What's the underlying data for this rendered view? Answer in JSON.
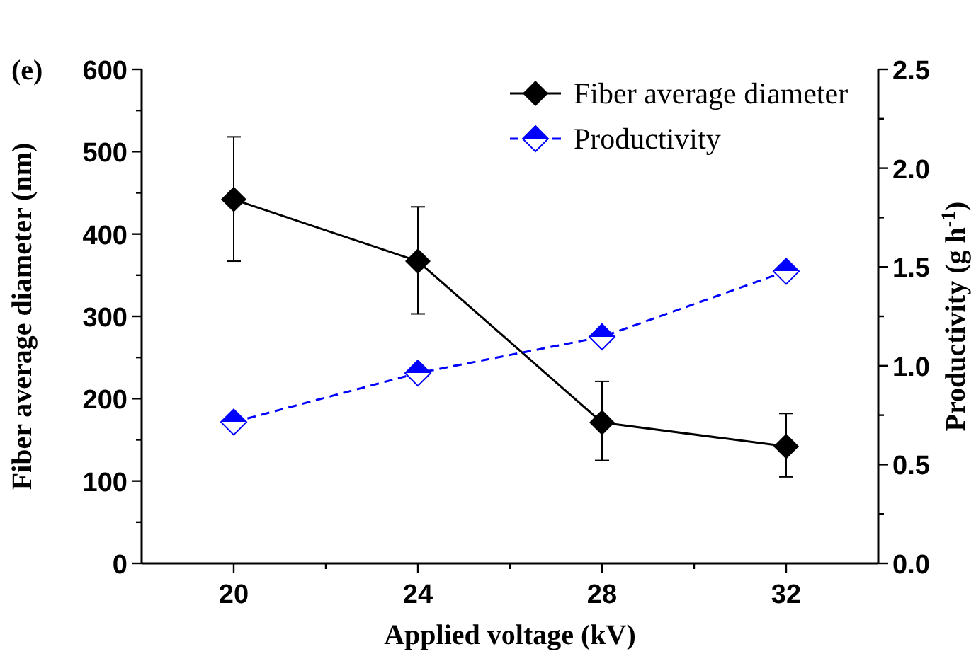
{
  "chart_data": {
    "type": "line",
    "title": "(e)",
    "xlabel": "Applied voltage (kV)",
    "ylabel": "Fiber average diameter (nm)",
    "y2label": "Productivity (g h$^{-1}$)",
    "x": [
      20,
      24,
      28,
      32
    ],
    "xlim": [
      18,
      34
    ],
    "xticks": [
      20,
      {
        "value": 22,
        "label": null
      },
      24,
      {
        "value": 26,
        "label": null
      },
      28,
      {
        "value": 30,
        "label": null
      },
      32
    ],
    "ylim": [
      0,
      600
    ],
    "yticks": [
      0,
      {
        "value": 50,
        "label": null
      },
      100,
      {
        "value": 150,
        "label": null
      },
      200,
      {
        "value": 250,
        "label": null
      },
      300,
      {
        "value": 350,
        "label": null
      },
      400,
      {
        "value": 450,
        "label": null
      },
      500,
      {
        "value": 550,
        "label": null
      },
      600
    ],
    "y2lim": [
      0,
      2.5
    ],
    "y2ticks": [
      {
        "value": 0,
        "label": "0.0"
      },
      {
        "value": 0.25,
        "label": null
      },
      {
        "value": 0.5,
        "label": "0.5"
      },
      {
        "value": 0.75,
        "label": null
      },
      {
        "value": 1,
        "label": "1.0"
      },
      {
        "value": 1.25,
        "label": null
      },
      {
        "value": 1.5,
        "label": "1.5"
      },
      {
        "value": 1.75,
        "label": null
      },
      {
        "value": 2,
        "label": "2.0"
      },
      {
        "value": 2.25,
        "label": null
      },
      {
        "value": 2.5,
        "label": "2.5"
      }
    ],
    "series": [
      {
        "name": "Fiber average diameter",
        "color": "#000000",
        "values": [
          442,
          367,
          171,
          142
        ],
        "errors": [
          [
            367,
            518
          ],
          [
            303,
            433
          ],
          [
            125,
            221
          ],
          [
            105,
            182
          ]
        ],
        "marker": "diamond",
        "line_style": "solid"
      },
      {
        "name": "Productivity",
        "color": "#0000ff",
        "values": [
          0.715,
          0.963,
          1.146,
          1.478
        ],
        "axis": "y2",
        "marker": "diamond",
        "line_style": "dashed"
      }
    ],
    "legend": "top right",
    "grid": false
  }
}
